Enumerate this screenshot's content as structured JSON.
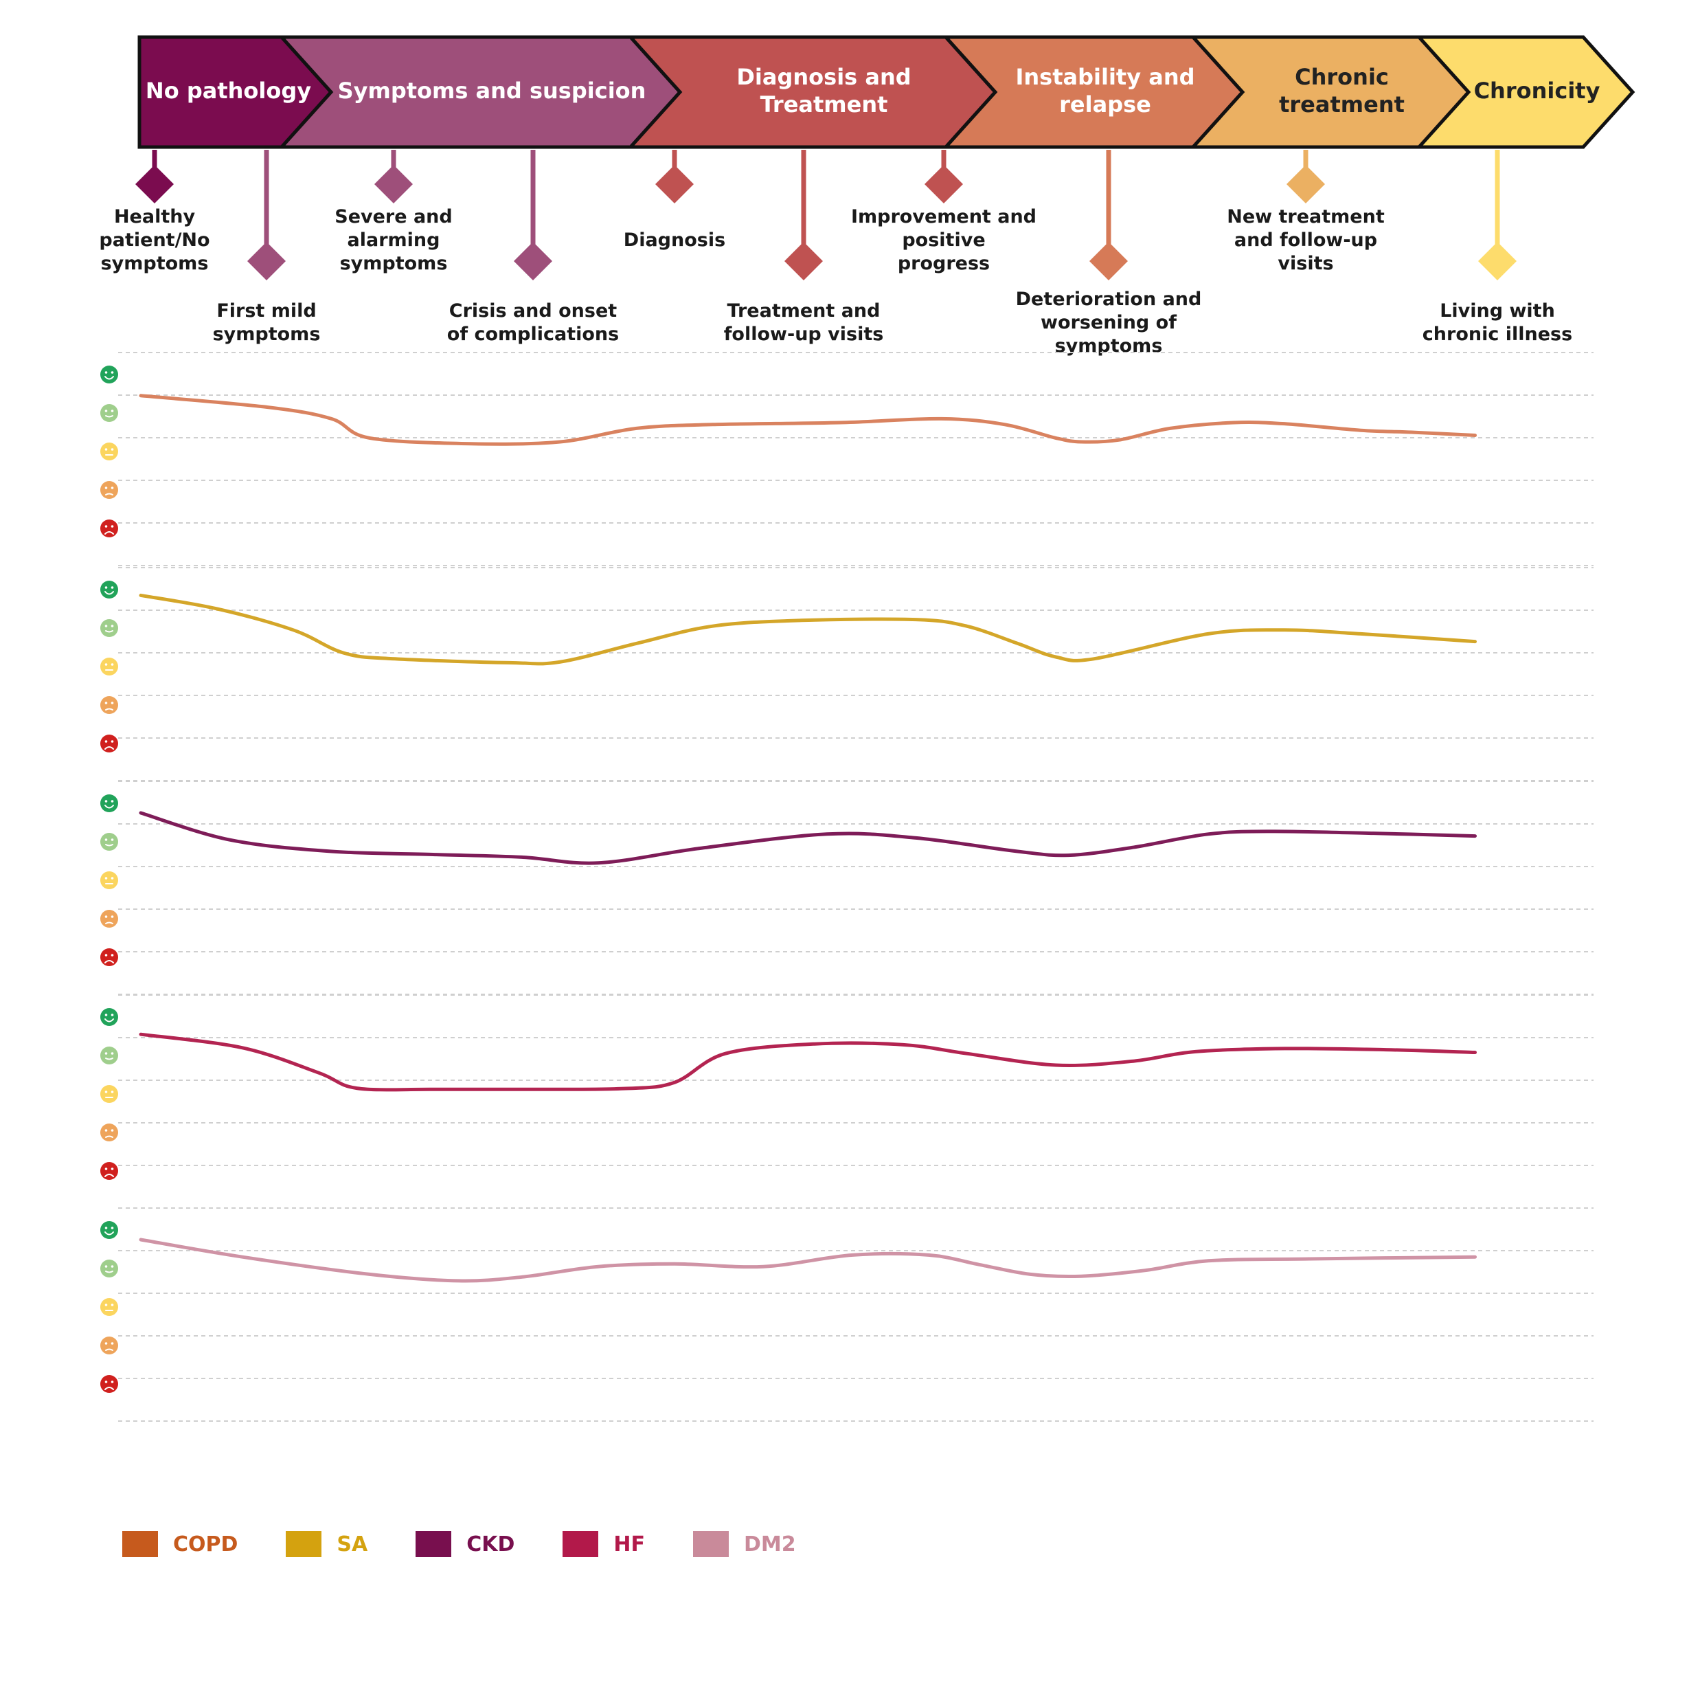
{
  "chart_data": {
    "type": "line",
    "stages": [
      {
        "label": "No pathology",
        "color": "#7b0c4f",
        "text_color": "#ffffff"
      },
      {
        "label": "Symptoms and suspicion",
        "color": "#9e4f7a",
        "text_color": "#ffffff"
      },
      {
        "label": "Diagnosis and Treatment",
        "color": "#bf5251",
        "text_color": "#ffffff"
      },
      {
        "label": "Instability and relapse",
        "color": "#d67a57",
        "text_color": "#ffffff"
      },
      {
        "label": "Chronic treatment",
        "color": "#ebb062",
        "text_color": "#222222"
      },
      {
        "label": "Chronicity",
        "color": "#fddc6c",
        "text_color": "#222222"
      }
    ],
    "milestones": [
      {
        "label": "Healthy patient/No symptoms",
        "stage": 0,
        "stem": "short",
        "color": "#7b0c4f"
      },
      {
        "label": "First mild symptoms",
        "stage": 0,
        "stem": "long",
        "color": "#9e4f7a"
      },
      {
        "label": "Severe and alarming symptoms",
        "stage": 1,
        "stem": "short",
        "color": "#9e4f7a"
      },
      {
        "label": "Crisis and onset of complications",
        "stage": 1,
        "stem": "long",
        "color": "#9e4f7a"
      },
      {
        "label": "Diagnosis",
        "stage": 2,
        "stem": "short",
        "color": "#bf5251"
      },
      {
        "label": "Treatment and follow-up visits",
        "stage": 2,
        "stem": "long",
        "color": "#bf5251"
      },
      {
        "label": "Improvement and positive progress",
        "stage": 2,
        "stem": "short",
        "color": "#bf5251"
      },
      {
        "label": "Deterioration and worsening of symptoms",
        "stage": 3,
        "stem": "long",
        "color": "#d67a57"
      },
      {
        "label": "New treatment and follow-up visits",
        "stage": 4,
        "stem": "short",
        "color": "#ebb062"
      },
      {
        "label": "Living with chronic illness",
        "stage": 5,
        "stem": "long",
        "color": "#fddc6c"
      }
    ],
    "mood_levels": [
      {
        "level": 5,
        "icon": "very-happy-face-icon",
        "color": "#21a35a"
      },
      {
        "level": 4,
        "icon": "happy-face-icon",
        "color": "#9fce8c"
      },
      {
        "level": 3,
        "icon": "neutral-face-icon",
        "color": "#fbd55f"
      },
      {
        "level": 2,
        "icon": "sad-face-icon",
        "color": "#eea45b"
      },
      {
        "level": 1,
        "icon": "very-sad-face-icon",
        "color": "#d0201e"
      }
    ],
    "y_range": [
      1,
      5
    ],
    "x_range": [
      0,
      11
    ],
    "grid": true,
    "series": [
      {
        "name": "COPD",
        "legend_color": "#c65a1d",
        "line_color": "#d9825f",
        "points": [
          [
            0,
            4.45
          ],
          [
            1,
            4.15
          ],
          [
            1.5,
            3.85
          ],
          [
            1.8,
            3.35
          ],
          [
            2.6,
            3.2
          ],
          [
            3.3,
            3.25
          ],
          [
            3.9,
            3.6
          ],
          [
            4.5,
            3.7
          ],
          [
            5.5,
            3.75
          ],
          [
            6.3,
            3.85
          ],
          [
            6.8,
            3.7
          ],
          [
            7.2,
            3.35
          ],
          [
            7.4,
            3.25
          ],
          [
            7.7,
            3.3
          ],
          [
            8.1,
            3.6
          ],
          [
            8.6,
            3.75
          ],
          [
            9,
            3.72
          ],
          [
            9.6,
            3.55
          ],
          [
            10,
            3.5
          ],
          [
            10.5,
            3.42
          ]
        ]
      },
      {
        "name": "SA",
        "legend_color": "#d4a20f",
        "line_color": "#d4a629",
        "points": [
          [
            0,
            4.85
          ],
          [
            0.6,
            4.5
          ],
          [
            1.2,
            3.95
          ],
          [
            1.6,
            3.35
          ],
          [
            2,
            3.2
          ],
          [
            2.9,
            3.1
          ],
          [
            3.3,
            3.12
          ],
          [
            3.9,
            3.6
          ],
          [
            4.5,
            4.05
          ],
          [
            5.2,
            4.2
          ],
          [
            6.1,
            4.22
          ],
          [
            6.5,
            4.05
          ],
          [
            6.9,
            3.6
          ],
          [
            7.2,
            3.25
          ],
          [
            7.5,
            3.2
          ],
          [
            8.4,
            3.85
          ],
          [
            9,
            3.95
          ],
          [
            9.6,
            3.85
          ],
          [
            10.5,
            3.65
          ]
        ]
      },
      {
        "name": "CKD",
        "legend_color": "#780f4e",
        "line_color": "#7e1c58",
        "points": [
          [
            0,
            4.75
          ],
          [
            0.7,
            4.05
          ],
          [
            1.5,
            3.75
          ],
          [
            2.3,
            3.67
          ],
          [
            3,
            3.6
          ],
          [
            3.6,
            3.45
          ],
          [
            4.4,
            3.83
          ],
          [
            5.4,
            4.2
          ],
          [
            6.1,
            4.1
          ],
          [
            6.9,
            3.75
          ],
          [
            7.3,
            3.65
          ],
          [
            7.8,
            3.85
          ],
          [
            8.4,
            4.2
          ],
          [
            8.9,
            4.27
          ],
          [
            9.7,
            4.22
          ],
          [
            10.5,
            4.15
          ]
        ]
      },
      {
        "name": "HF",
        "legend_color": "#b2194a",
        "line_color": "#b32451",
        "points": [
          [
            0,
            4.55
          ],
          [
            0.8,
            4.2
          ],
          [
            1.4,
            3.55
          ],
          [
            1.7,
            3.15
          ],
          [
            2.3,
            3.12
          ],
          [
            3,
            3.12
          ],
          [
            3.8,
            3.14
          ],
          [
            4.2,
            3.3
          ],
          [
            4.6,
            4.05
          ],
          [
            5.3,
            4.3
          ],
          [
            6,
            4.28
          ],
          [
            6.5,
            4.05
          ],
          [
            7.2,
            3.75
          ],
          [
            7.8,
            3.85
          ],
          [
            8.3,
            4.1
          ],
          [
            9,
            4.18
          ],
          [
            9.8,
            4.15
          ],
          [
            10.5,
            4.08
          ]
        ]
      },
      {
        "name": "DM2",
        "legend_color": "#c98a9a",
        "line_color": "#cf93a5",
        "points": [
          [
            0,
            4.75
          ],
          [
            0.8,
            4.3
          ],
          [
            1.8,
            3.85
          ],
          [
            2.5,
            3.68
          ],
          [
            3,
            3.78
          ],
          [
            3.6,
            4.05
          ],
          [
            4.2,
            4.12
          ],
          [
            4.9,
            4.05
          ],
          [
            5.6,
            4.35
          ],
          [
            6.2,
            4.35
          ],
          [
            6.6,
            4.1
          ],
          [
            7,
            3.85
          ],
          [
            7.4,
            3.8
          ],
          [
            7.9,
            3.95
          ],
          [
            8.4,
            4.2
          ],
          [
            9.2,
            4.25
          ],
          [
            10.5,
            4.3
          ]
        ]
      }
    ]
  }
}
